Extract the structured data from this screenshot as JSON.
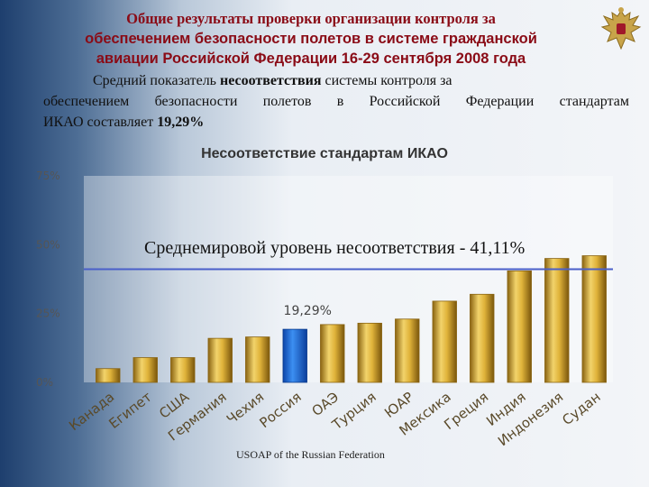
{
  "header": {
    "title_line1": "Общие результаты проверки организации контроля за",
    "title_line2": "обеспечением безопасности полетов в системе гражданской",
    "title_line3": "авиации Российской Федерации 16-29 сентября 2008 года"
  },
  "summary": {
    "line1_pre": "Средний показатель ",
    "line1_bold": "несоответствия",
    "line1_post": " системы контроля за",
    "line2": "обеспечением безопасности полетов в Российской Федерации стандартам",
    "line3_pre": "ИКАО составляет ",
    "line3_bold": "19,29%"
  },
  "average": {
    "label": "Среднемировой уровень несоответствия - 41,11%",
    "value": 41.11
  },
  "footer": {
    "source": "USOAP of the Russian Federation"
  },
  "colors": {
    "bar_gold": "#d4a52c",
    "bar_highlight": "#1e6fd9",
    "avg_line": "#4a5fc9",
    "title": "#8a0b16"
  },
  "chart_data": {
    "type": "bar",
    "title": "Несоответствие стандартам ИКАО",
    "categories": [
      "Канада",
      "Египет",
      "США",
      "Германия",
      "Чехия",
      "Россия",
      "ОАЭ",
      "Турция",
      "ЮАР",
      "Мексика",
      "Греция",
      "Индия",
      "Индонезия",
      "Судан"
    ],
    "values": [
      5,
      9,
      9,
      16,
      16.5,
      19.29,
      21,
      21.5,
      23,
      29.5,
      32,
      40.5,
      45,
      46
    ],
    "highlight_index": 5,
    "data_label": "19,29%",
    "y_ticks": [
      "0%",
      "25%",
      "50%",
      "75%"
    ],
    "ylim": [
      0,
      75
    ],
    "grid": false
  }
}
